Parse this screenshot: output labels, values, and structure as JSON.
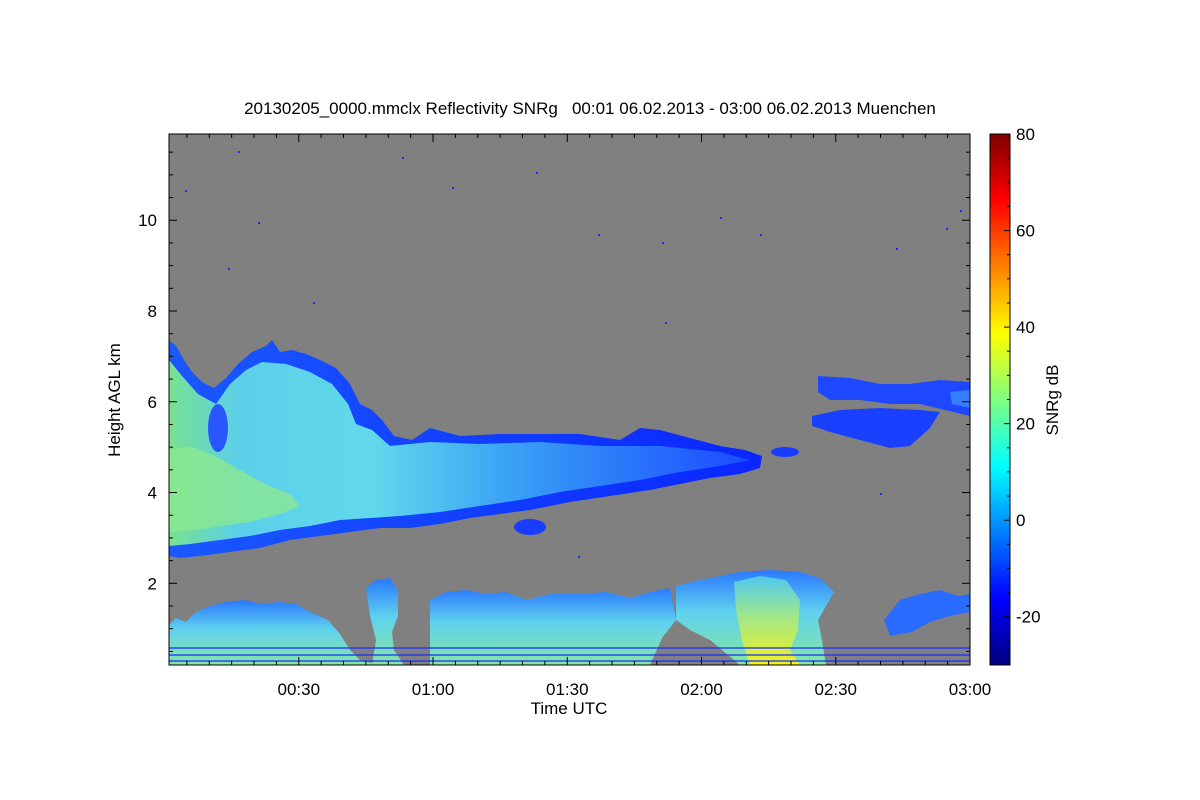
{
  "chart_data": {
    "type": "heatmap",
    "title": "20130205_0000.mmclx Reflectivity SNRg   00:01 06.02.2013 - 03:00 06.02.2013 Muenchen",
    "xlabel": "Time UTC",
    "ylabel": "Height AGL km",
    "x_range_minutes": [
      1,
      180
    ],
    "x_ticks": [
      {
        "minute": 30,
        "label": "00:30"
      },
      {
        "minute": 60,
        "label": "01:00"
      },
      {
        "minute": 90,
        "label": "01:30"
      },
      {
        "minute": 120,
        "label": "02:00"
      },
      {
        "minute": 150,
        "label": "02:30"
      },
      {
        "minute": 180,
        "label": "03:00"
      }
    ],
    "y_range_km": [
      0.2,
      11.9
    ],
    "y_ticks": [
      {
        "value": 2,
        "label": "2"
      },
      {
        "value": 4,
        "label": "4"
      },
      {
        "value": 6,
        "label": "6"
      },
      {
        "value": 8,
        "label": "8"
      },
      {
        "value": 10,
        "label": "10"
      }
    ],
    "colorbar": {
      "label": "SNRg dB",
      "range": [
        -30,
        80
      ],
      "ticks": [
        {
          "value": -20,
          "label": "-20"
        },
        {
          "value": 0,
          "label": "0"
        },
        {
          "value": 20,
          "label": "20"
        },
        {
          "value": 40,
          "label": "40"
        },
        {
          "value": 60,
          "label": "60"
        },
        {
          "value": 80,
          "label": "80"
        }
      ],
      "colormap": "jet"
    },
    "background_color": "#808080",
    "grid": false,
    "legend": "colorbar-right",
    "features": [
      {
        "name": "mid-level cloud layer",
        "x_minutes": [
          1,
          132
        ],
        "y_km": [
          2.7,
          7.4
        ],
        "snr_db": [
          -15,
          25
        ]
      },
      {
        "name": "upper cloud layer",
        "x_minutes": [
          145,
          180
        ],
        "y_km": [
          4.9,
          6.6
        ],
        "snr_db": [
          -20,
          0
        ]
      },
      {
        "name": "boundary layer echoes",
        "x_minutes": [
          1,
          180
        ],
        "y_km": [
          0.2,
          2.3
        ],
        "snr_db": [
          -20,
          40
        ]
      },
      {
        "name": "strong echo near surface",
        "x_minutes": [
          134,
          150
        ],
        "y_km": [
          0.2,
          2.3
        ],
        "snr_db": [
          20,
          40
        ]
      }
    ]
  }
}
